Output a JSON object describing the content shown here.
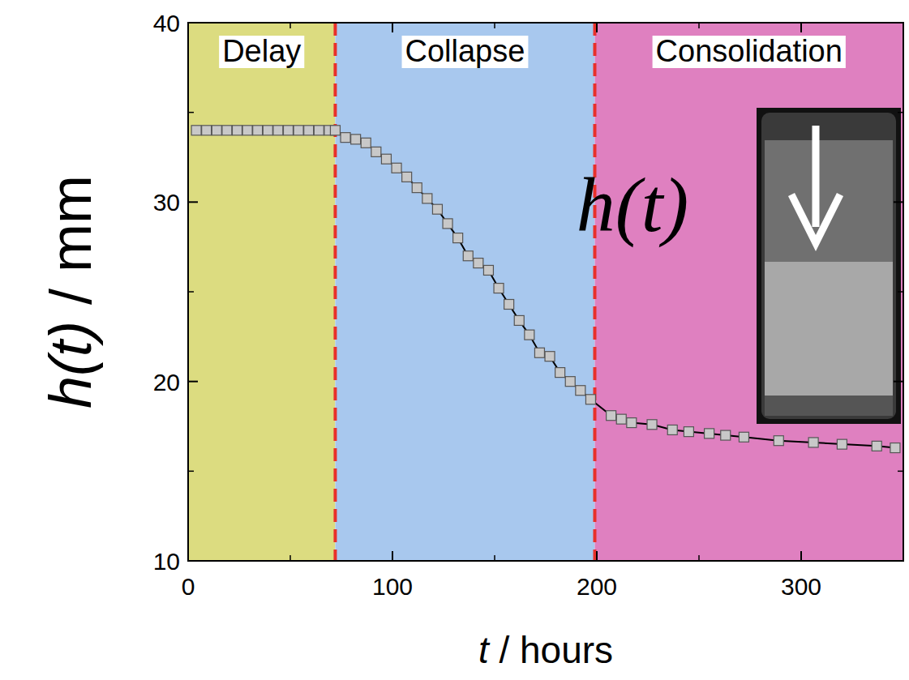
{
  "chart_data": {
    "type": "line",
    "x_label": "t / hours",
    "y_label": "h(t) / mm",
    "xlim": [
      0,
      350
    ],
    "ylim": [
      10,
      40
    ],
    "xticks": [
      0,
      100,
      200,
      300
    ],
    "yticks": [
      10,
      20,
      30,
      40
    ],
    "grid": false,
    "regions": [
      {
        "label": "Delay",
        "start": 0,
        "end": 72,
        "color": "#dcdc80"
      },
      {
        "label": "Collapse",
        "start": 72,
        "end": 199,
        "color": "#a8c8ee"
      },
      {
        "label": "Consolidation",
        "start": 199,
        "end": 350,
        "color": "#df80c0"
      }
    ],
    "annotations": [
      "h(t)"
    ],
    "x": [
      4,
      9,
      14,
      19,
      24,
      29,
      34,
      39,
      44,
      49,
      54,
      59,
      64,
      69,
      72,
      77,
      82,
      87,
      92,
      97,
      102,
      107,
      112,
      117,
      122,
      127,
      132,
      137,
      142,
      147,
      152,
      157,
      162,
      167,
      172,
      177,
      182,
      187,
      192,
      197,
      207,
      212,
      217,
      227,
      237,
      245,
      255,
      263,
      272,
      289,
      306,
      320,
      337,
      346
    ],
    "series": [
      {
        "name": "h(t)",
        "color": "#c8c8c8",
        "marker": "square",
        "line_style": "solid",
        "values": [
          34.0,
          34.0,
          34.0,
          34.0,
          34.0,
          34.0,
          34.0,
          34.0,
          34.0,
          34.0,
          34.0,
          34.0,
          34.0,
          34.0,
          34.0,
          33.6,
          33.5,
          33.3,
          32.8,
          32.4,
          31.9,
          31.4,
          30.8,
          30.2,
          29.6,
          28.8,
          28.0,
          27.0,
          26.6,
          26.2,
          25.2,
          24.3,
          23.4,
          22.6,
          21.6,
          21.4,
          20.5,
          20.0,
          19.5,
          19.0,
          18.1,
          17.9,
          17.7,
          17.6,
          17.3,
          17.2,
          17.1,
          17.0,
          16.9,
          16.7,
          16.6,
          16.5,
          16.4,
          16.3
        ]
      }
    ]
  }
}
